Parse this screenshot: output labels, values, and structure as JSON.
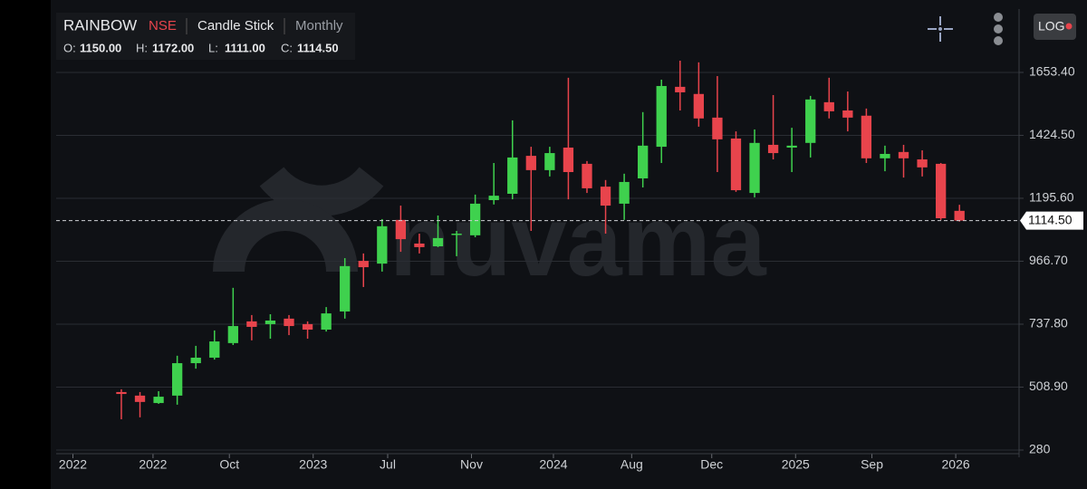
{
  "header": {
    "symbol": "RAINBOW",
    "exchange": "NSE",
    "chart_style": "Candle Stick",
    "interval": "Monthly",
    "ohlc": [
      {
        "key": "O:",
        "label": "1150.00"
      },
      {
        "key": "H:",
        "label": "1172.00"
      },
      {
        "key": "L:",
        "label": "1111.00"
      },
      {
        "key": "C:",
        "label": "1114.50"
      }
    ]
  },
  "toolbar": {
    "log_button": "LOG"
  },
  "watermark": "nuvama",
  "chart_data": {
    "type": "candlestick",
    "up_color": "#3fd14e",
    "down_color": "#e8444c",
    "open": [
      491,
      478,
      451,
      478,
      596,
      616,
      669,
      748,
      738,
      758,
      738,
      718,
      784,
      968,
      958,
      1117,
      1031,
      1021,
      1064,
      1061,
      1189,
      1212,
      1350,
      1298,
      1380,
      1321,
      1238,
      1176,
      1268,
      1383,
      1601,
      1575,
      1489,
      1413,
      1215,
      1390,
      1380,
      1397,
      1545,
      1515,
      1496,
      1341,
      1364,
      1337,
      1321,
      1150
    ],
    "high": [
      501,
      491,
      494,
      623,
      659,
      715,
      870,
      771,
      774,
      771,
      748,
      800,
      978,
      995,
      1120,
      1169,
      1067,
      1133,
      1077,
      1209,
      1324,
      1479,
      1383,
      1383,
      1634,
      1331,
      1262,
      1285,
      1509,
      1627,
      1696,
      1690,
      1640,
      1439,
      1446,
      1571,
      1452,
      1568,
      1634,
      1584,
      1522,
      1387,
      1390,
      1370,
      1324,
      1172
    ],
    "low": [
      392,
      399,
      448,
      445,
      576,
      609,
      662,
      679,
      685,
      698,
      685,
      711,
      758,
      873,
      929,
      1001,
      995,
      1018,
      985,
      1054,
      1173,
      1192,
      1077,
      1275,
      1192,
      1215,
      1067,
      1117,
      1235,
      1324,
      1515,
      1456,
      1291,
      1219,
      1199,
      1337,
      1291,
      1344,
      1486,
      1439,
      1324,
      1294,
      1271,
      1275,
      1117,
      1111
    ],
    "close": [
      484,
      455,
      474,
      596,
      616,
      675,
      731,
      728,
      751,
      731,
      718,
      777,
      949,
      945,
      1094,
      1047,
      1018,
      1051,
      1067,
      1176,
      1205,
      1344,
      1298,
      1360,
      1291,
      1232,
      1169,
      1255,
      1387,
      1604,
      1581,
      1486,
      1410,
      1225,
      1397,
      1360,
      1387,
      1555,
      1512,
      1489,
      1341,
      1357,
      1341,
      1308,
      1123,
      1114.5
    ],
    "last_price": {
      "value": 1114.5,
      "label": "1114.50"
    },
    "xlim": [
      -3.5,
      48.2
    ],
    "xticks": [
      {
        "value": -2.6,
        "label": "2022"
      },
      {
        "value": 1.7,
        "label": "2022"
      },
      {
        "value": 5.8,
        "label": "Oct"
      },
      {
        "value": 10.3,
        "label": "2023"
      },
      {
        "value": 14.3,
        "label": "Jul"
      },
      {
        "value": 18.8,
        "label": "Nov"
      },
      {
        "value": 23.2,
        "label": "2024"
      },
      {
        "value": 27.4,
        "label": "Aug"
      },
      {
        "value": 31.7,
        "label": "Dec"
      },
      {
        "value": 36.2,
        "label": "2025"
      },
      {
        "value": 40.3,
        "label": "Sep"
      },
      {
        "value": 44.8,
        "label": "2026"
      }
    ],
    "ylim": [
      280,
      1785
    ],
    "yticks": [
      280,
      {
        "value": 508.9,
        "label": "508.90"
      },
      {
        "value": 737.8,
        "label": "737.80"
      },
      {
        "value": 966.7,
        "label": "966.70"
      },
      {
        "value": 1195.6,
        "label": "1195.60"
      },
      {
        "value": 1424.5,
        "label": "1424.50"
      },
      {
        "value": 1653.4,
        "label": "1653.40"
      }
    ],
    "grid": true
  }
}
